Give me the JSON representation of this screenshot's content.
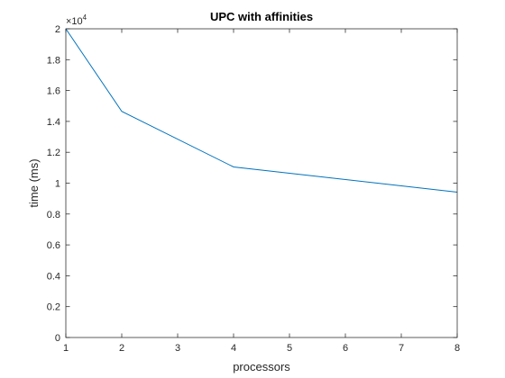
{
  "chart_data": {
    "type": "line",
    "title": "UPC with affinities",
    "xlabel": "processors",
    "ylabel": "time (ms)",
    "xlim": [
      1,
      8
    ],
    "ylim": [
      0,
      20000
    ],
    "y_exponent_label": {
      "base": "×10",
      "power": "4"
    },
    "x_ticks": [
      1,
      2,
      3,
      4,
      5,
      6,
      7,
      8
    ],
    "y_ticks": [
      0,
      2000,
      4000,
      6000,
      8000,
      10000,
      12000,
      14000,
      16000,
      18000,
      20000
    ],
    "y_tick_labels": [
      "0",
      "0.2",
      "0.4",
      "0.6",
      "0.8",
      "1",
      "1.2",
      "1.4",
      "1.6",
      "1.8",
      "2"
    ],
    "grid": false,
    "series": [
      {
        "color": "#0072bd",
        "x": [
          1,
          2,
          4,
          8
        ],
        "y": [
          20000,
          14650,
          11050,
          9420
        ]
      }
    ]
  }
}
